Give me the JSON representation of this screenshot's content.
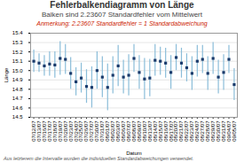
{
  "chart_data": {
    "type": "errorbar",
    "title": "Fehlerbalkendiagramm von Länge",
    "subtitle": "Balken sind 2.23607 Standardfehler vom Mittelwert",
    "annotation": {
      "text": "Anmerkung: 2.23607 Standardfehler = 1 Standardabweichung",
      "color": "#cc2200"
    },
    "footnote": "Aus letzterem die Intervalle wurden die individuellen Standardabweichungen verwendet.",
    "xlabel": "Datum",
    "ylabel": "Länge",
    "categories": [
      "07/12/07",
      "07/13/07",
      "07/16/07",
      "07/17/07",
      "07/18/07",
      "07/19/07",
      "07/20/07",
      "07/23/07",
      "07/24/07",
      "07/25/07",
      "07/26/07",
      "07/27/07",
      "07/30/07",
      "07/31/07",
      "08/01/07",
      "08/02/07",
      "08/03/07",
      "08/06/07",
      "08/07/07",
      "08/08/07",
      "08/09/07",
      "08/10/07",
      "08/13/07",
      "08/14/07",
      "08/15/07",
      "08/16/07",
      "08/17/07",
      "08/20/07",
      "08/21/07",
      "08/22/07",
      "08/23/07",
      "08/24/07",
      "08/27/07",
      "08/28/07",
      "08/29/07",
      "08/30/07",
      "08/31/07",
      "09/04/07",
      "09/05/07"
    ],
    "values": [
      15.1,
      15.08,
      15.05,
      15.07,
      15.06,
      15.13,
      15.12,
      14.97,
      14.88,
      14.92,
      14.83,
      14.82,
      15.0,
      14.93,
      14.82,
      14.95,
      15.05,
      14.93,
      14.95,
      15.13,
      14.98,
      14.91,
      14.92,
      15.11,
      15.1,
      15.08,
      14.98,
      15.14,
      15.08,
      15.03,
      14.97,
      15.1,
      15.12,
      14.97,
      15.13,
      14.93,
      14.98,
      15.12,
      14.85
    ],
    "errors": [
      0.12,
      0.1,
      0.11,
      0.13,
      0.14,
      0.18,
      0.16,
      0.17,
      0.15,
      0.16,
      0.18,
      0.22,
      0.2,
      0.22,
      0.25,
      0.2,
      0.22,
      0.18,
      0.22,
      0.15,
      0.18,
      0.22,
      0.2,
      0.17,
      0.15,
      0.16,
      0.18,
      0.14,
      0.16,
      0.15,
      0.18,
      0.17,
      0.15,
      0.18,
      0.17,
      0.18,
      0.19,
      0.15,
      0.17
    ],
    "color": "#1a3a6b",
    "error_color": "#8bbdd9",
    "ylim": [
      14.5,
      15.4
    ],
    "yticks": [
      14.5,
      14.6,
      14.7,
      14.8,
      14.9,
      {
        "value": 15,
        "label": "15.0"
      },
      15.1,
      15.2,
      15.3,
      15.4
    ],
    "grid": true
  }
}
